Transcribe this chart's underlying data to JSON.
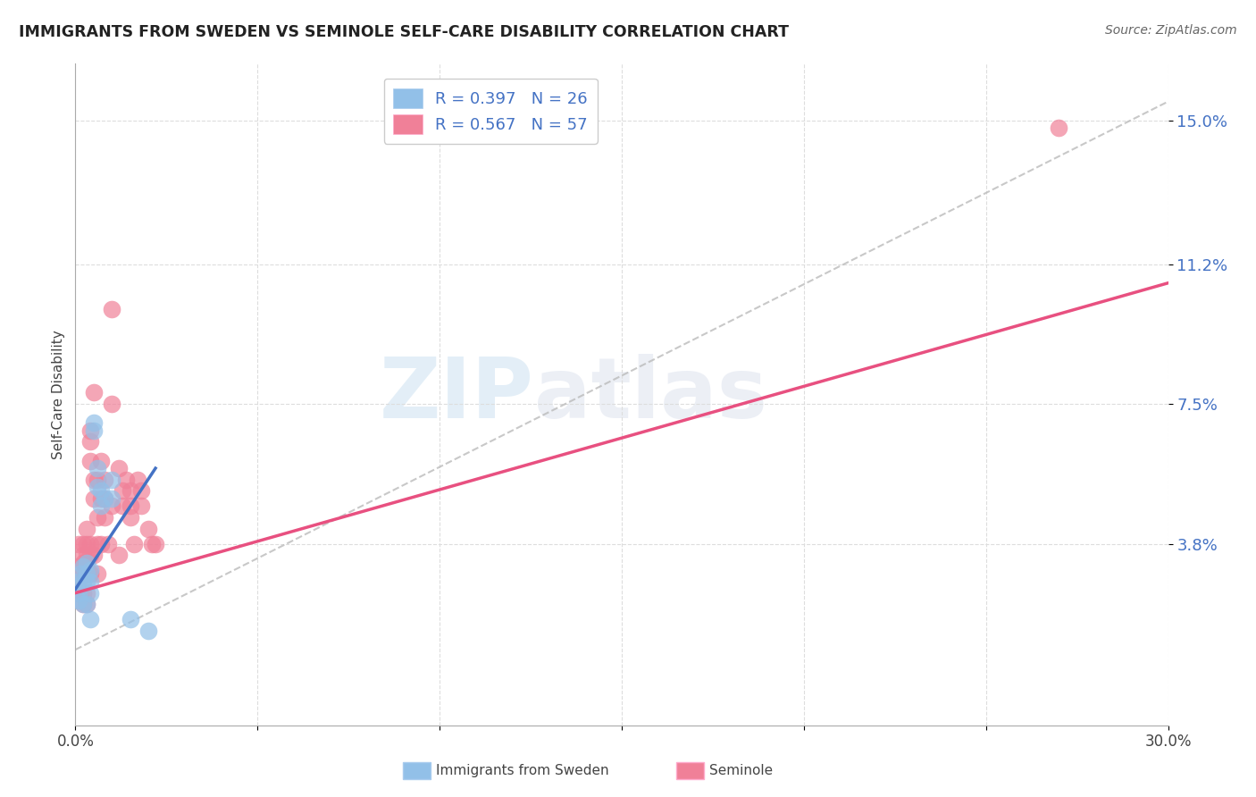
{
  "title": "IMMIGRANTS FROM SWEDEN VS SEMINOLE SELF-CARE DISABILITY CORRELATION CHART",
  "source": "Source: ZipAtlas.com",
  "ylabel": "Self-Care Disability",
  "ytick_labels": [
    "3.8%",
    "7.5%",
    "11.2%",
    "15.0%"
  ],
  "ytick_values": [
    0.038,
    0.075,
    0.112,
    0.15
  ],
  "xlim": [
    0.0,
    0.3
  ],
  "ylim": [
    -0.01,
    0.165
  ],
  "legend_r1": "R = 0.397",
  "legend_n1": "N = 26",
  "legend_r2": "R = 0.567",
  "legend_n2": "N = 57",
  "color_blue": "#92C0E8",
  "color_pink": "#F08098",
  "line_color_blue": "#4472C4",
  "line_color_pink": "#E85080",
  "line_color_dash": "#BBBBBB",
  "watermark_zip": "ZIP",
  "watermark_atlas": "atlas",
  "sweden_points": [
    [
      0.0005,
      0.028
    ],
    [
      0.001,
      0.025
    ],
    [
      0.001,
      0.023
    ],
    [
      0.0015,
      0.03
    ],
    [
      0.002,
      0.032
    ],
    [
      0.002,
      0.028
    ],
    [
      0.002,
      0.022
    ],
    [
      0.003,
      0.033
    ],
    [
      0.003,
      0.03
    ],
    [
      0.003,
      0.028
    ],
    [
      0.003,
      0.022
    ],
    [
      0.004,
      0.031
    ],
    [
      0.004,
      0.028
    ],
    [
      0.004,
      0.025
    ],
    [
      0.004,
      0.018
    ],
    [
      0.005,
      0.07
    ],
    [
      0.005,
      0.068
    ],
    [
      0.006,
      0.058
    ],
    [
      0.006,
      0.053
    ],
    [
      0.007,
      0.052
    ],
    [
      0.007,
      0.048
    ],
    [
      0.008,
      0.05
    ],
    [
      0.01,
      0.055
    ],
    [
      0.01,
      0.05
    ],
    [
      0.015,
      0.018
    ],
    [
      0.02,
      0.015
    ]
  ],
  "seminole_points": [
    [
      0.001,
      0.038
    ],
    [
      0.001,
      0.032
    ],
    [
      0.001,
      0.028
    ],
    [
      0.001,
      0.025
    ],
    [
      0.002,
      0.038
    ],
    [
      0.002,
      0.035
    ],
    [
      0.002,
      0.033
    ],
    [
      0.002,
      0.03
    ],
    [
      0.002,
      0.025
    ],
    [
      0.002,
      0.022
    ],
    [
      0.003,
      0.042
    ],
    [
      0.003,
      0.038
    ],
    [
      0.003,
      0.035
    ],
    [
      0.003,
      0.033
    ],
    [
      0.003,
      0.03
    ],
    [
      0.003,
      0.025
    ],
    [
      0.003,
      0.022
    ],
    [
      0.004,
      0.068
    ],
    [
      0.004,
      0.065
    ],
    [
      0.004,
      0.06
    ],
    [
      0.004,
      0.038
    ],
    [
      0.004,
      0.035
    ],
    [
      0.004,
      0.03
    ],
    [
      0.005,
      0.078
    ],
    [
      0.005,
      0.055
    ],
    [
      0.005,
      0.05
    ],
    [
      0.005,
      0.035
    ],
    [
      0.006,
      0.055
    ],
    [
      0.006,
      0.045
    ],
    [
      0.006,
      0.038
    ],
    [
      0.006,
      0.03
    ],
    [
      0.007,
      0.06
    ],
    [
      0.007,
      0.05
    ],
    [
      0.007,
      0.038
    ],
    [
      0.008,
      0.055
    ],
    [
      0.008,
      0.05
    ],
    [
      0.008,
      0.045
    ],
    [
      0.009,
      0.038
    ],
    [
      0.01,
      0.075
    ],
    [
      0.01,
      0.048
    ],
    [
      0.012,
      0.058
    ],
    [
      0.012,
      0.035
    ],
    [
      0.013,
      0.052
    ],
    [
      0.013,
      0.048
    ],
    [
      0.014,
      0.055
    ],
    [
      0.015,
      0.052
    ],
    [
      0.015,
      0.048
    ],
    [
      0.015,
      0.045
    ],
    [
      0.016,
      0.038
    ],
    [
      0.017,
      0.055
    ],
    [
      0.018,
      0.052
    ],
    [
      0.018,
      0.048
    ],
    [
      0.02,
      0.042
    ],
    [
      0.021,
      0.038
    ],
    [
      0.022,
      0.038
    ],
    [
      0.27,
      0.148
    ],
    [
      0.01,
      0.1
    ]
  ],
  "blue_line_x": [
    0.0,
    0.022
  ],
  "blue_line_y": [
    0.026,
    0.058
  ],
  "pink_line_x": [
    0.0,
    0.3
  ],
  "pink_line_y": [
    0.025,
    0.107
  ],
  "dash_line_x": [
    0.0,
    0.3
  ],
  "dash_line_y": [
    0.01,
    0.155
  ]
}
